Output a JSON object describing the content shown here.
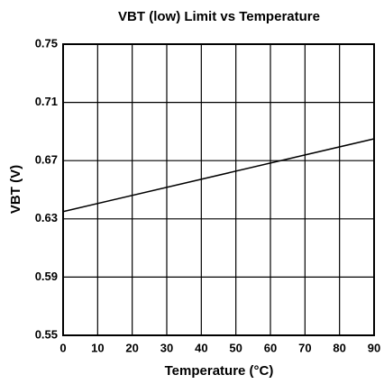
{
  "chart_data": {
    "type": "line",
    "title": "VBT (low) Limit vs Temperature",
    "xlabel": "Temperature (°C)",
    "ylabel": "VBT (V)",
    "x": [
      0,
      90
    ],
    "series": [
      {
        "name": "VBT",
        "color": "#000000",
        "values": [
          0.635,
          0.685
        ]
      }
    ],
    "xlim": [
      0,
      90
    ],
    "xticks": [
      0,
      10,
      20,
      30,
      40,
      50,
      60,
      70,
      80,
      90
    ],
    "ylim": [
      0.55,
      0.75
    ],
    "yticks": [
      0.55,
      0.59,
      0.63,
      0.67,
      0.71,
      0.75
    ],
    "grid": true
  }
}
